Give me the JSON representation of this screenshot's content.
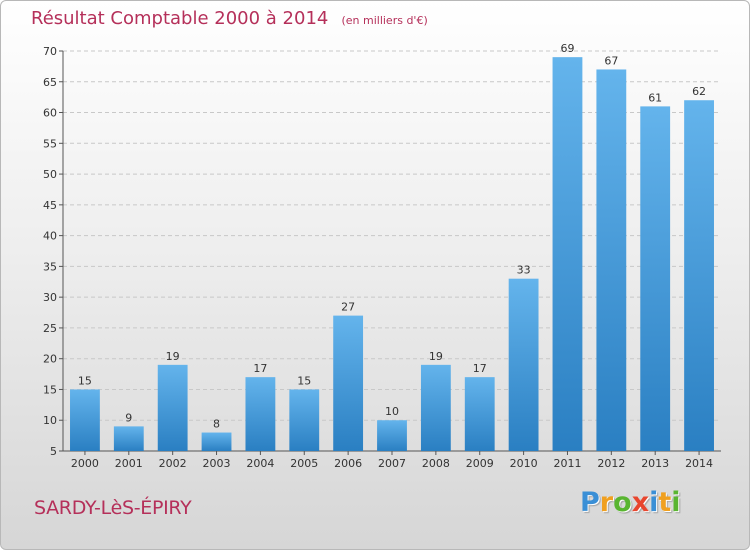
{
  "header": {
    "title": "Résultat Comptable 2000 à 2014",
    "subtitle": "(en milliers d'€)"
  },
  "commune": "SARDY-LèS-ÉPIRY",
  "logo": {
    "letters": [
      {
        "char": "P",
        "color": "#3a8fd6"
      },
      {
        "char": "r",
        "color": "#f0a020"
      },
      {
        "char": "o",
        "color": "#59b531"
      },
      {
        "char": "x",
        "color": "#e8462e"
      },
      {
        "char": "i",
        "color": "#3a8fd6"
      },
      {
        "char": "t",
        "color": "#f0a020"
      },
      {
        "char": "i",
        "color": "#59b531"
      }
    ]
  },
  "colors": {
    "bar_light": "#64b4ec",
    "bar_dark": "#2a7fc2",
    "grid": "#c8c8c8",
    "title": "#b5305a"
  },
  "chart_data": {
    "type": "bar",
    "title": "Résultat Comptable 2000 à 2014",
    "subtitle": "(en milliers d'€)",
    "xlabel": "",
    "ylabel": "",
    "categories": [
      "2000",
      "2001",
      "2002",
      "2003",
      "2004",
      "2005",
      "2006",
      "2007",
      "2008",
      "2009",
      "2010",
      "2011",
      "2012",
      "2013",
      "2014"
    ],
    "values": [
      15,
      9,
      19,
      8,
      17,
      15,
      27,
      10,
      19,
      17,
      33,
      69,
      67,
      61,
      62
    ],
    "ylim": [
      5,
      70
    ],
    "yticks": [
      5,
      10,
      15,
      20,
      25,
      30,
      35,
      40,
      45,
      50,
      55,
      60,
      65,
      70
    ],
    "grid": true,
    "data_labels": true
  }
}
